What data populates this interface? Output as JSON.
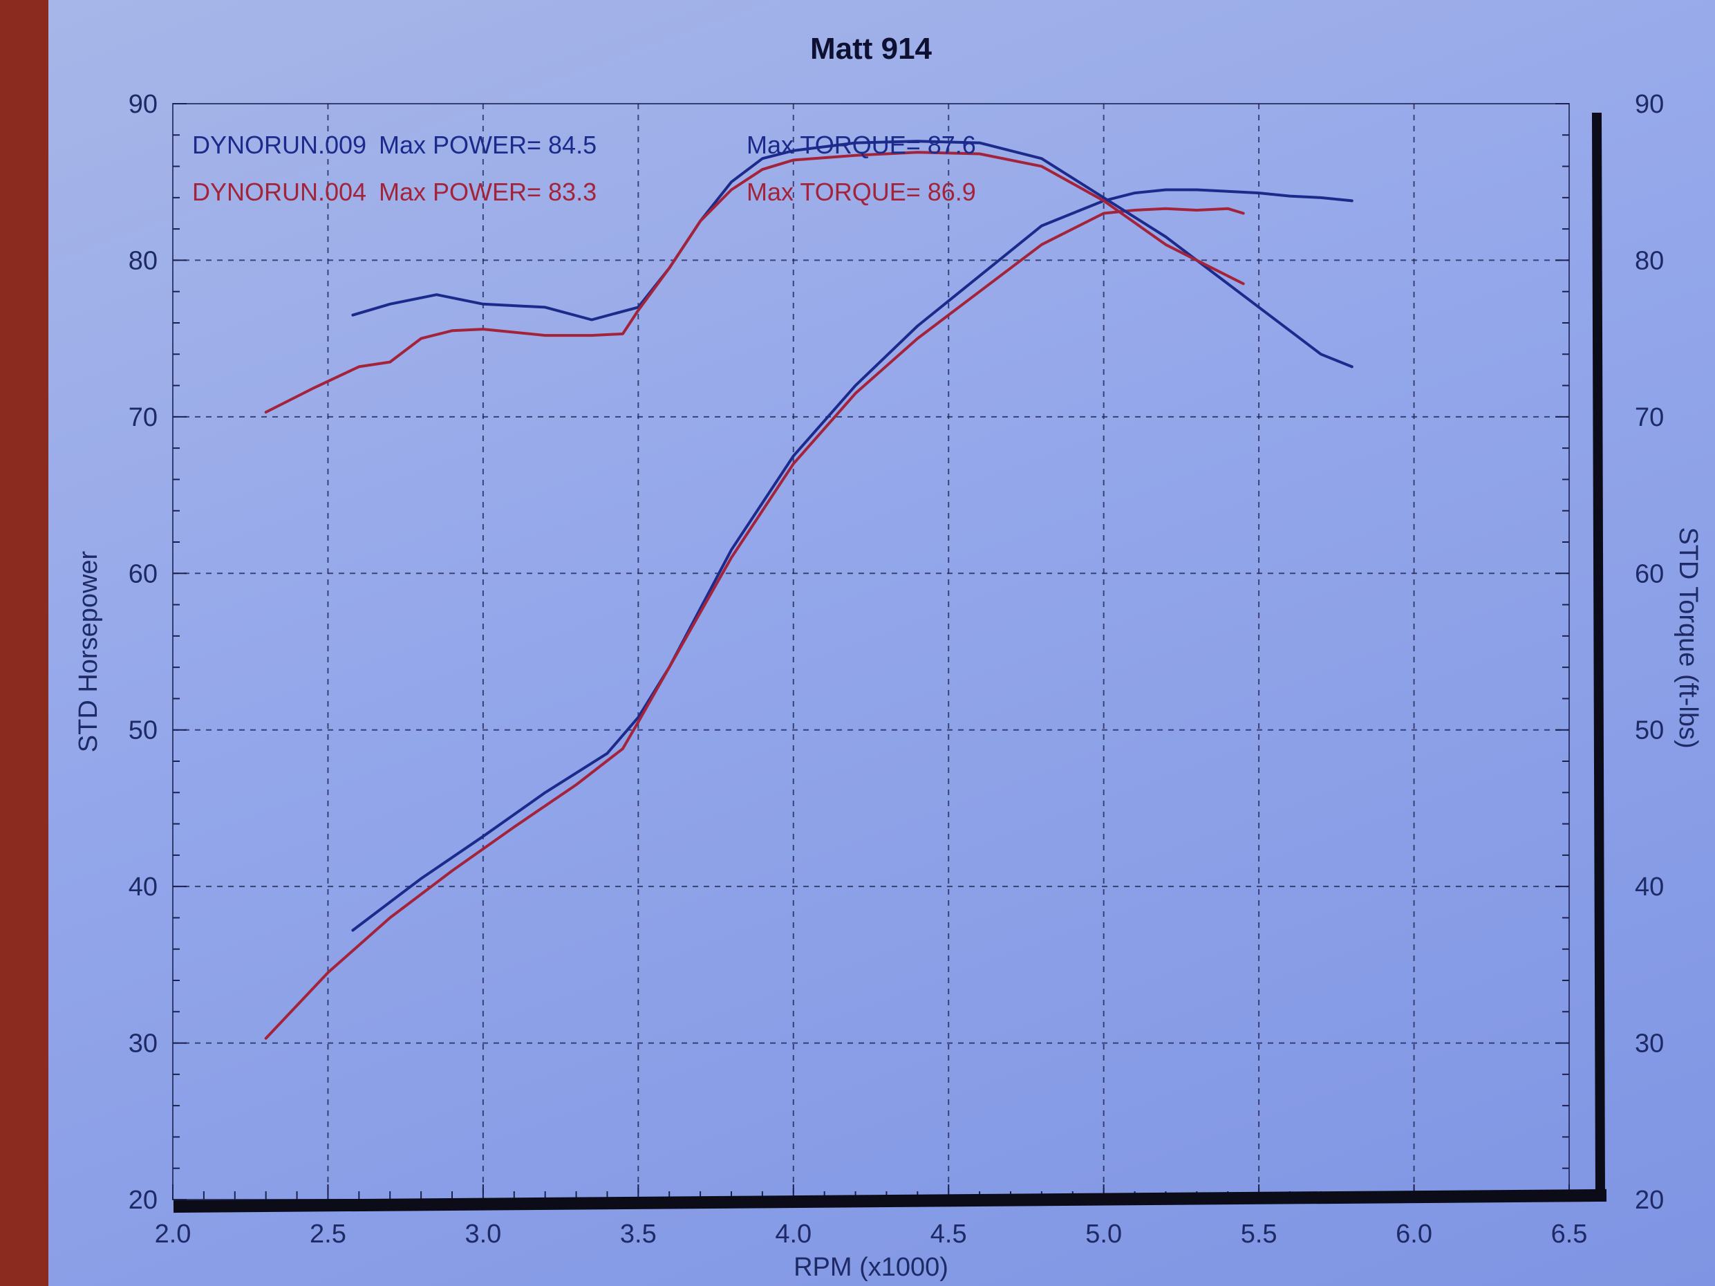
{
  "chart_data": {
    "type": "line",
    "title": "Matt 914",
    "xlabel": "RPM (x1000)",
    "ylabel_left": "STD Horsepower",
    "ylabel_right": "STD Torque (ft-lbs)",
    "xlim": [
      2.0,
      6.5
    ],
    "ylim_left": [
      20,
      90
    ],
    "ylim_right": [
      20,
      90
    ],
    "x_ticks": [
      "2.0",
      "2.5",
      "3.0",
      "3.5",
      "4.0",
      "4.5",
      "5.0",
      "5.5",
      "6.0",
      "6.5"
    ],
    "y_ticks_left": [
      "20",
      "30",
      "40",
      "50",
      "60",
      "70",
      "80",
      "90"
    ],
    "y_ticks_right": [
      "20",
      "30",
      "40",
      "50",
      "60",
      "70",
      "80",
      "90"
    ],
    "grid": true,
    "legend": [
      {
        "run": "DYNORUN.009",
        "power": "Max POWER= 84.5",
        "torque": "Max TORQUE= 87.6",
        "color": "#1c2a8c"
      },
      {
        "run": "DYNORUN.004",
        "power": "Max POWER= 83.3",
        "torque": "Max TORQUE= 86.9",
        "color": "#a3243a"
      }
    ],
    "series": [
      {
        "name": "DYNORUN.009",
        "measure": "power",
        "color": "#1c2a8c",
        "x": [
          2.58,
          2.8,
          3.0,
          3.2,
          3.4,
          3.5,
          3.6,
          3.8,
          4.0,
          4.2,
          4.4,
          4.6,
          4.8,
          5.0,
          5.1,
          5.2,
          5.3,
          5.4,
          5.5,
          5.6,
          5.7,
          5.8
        ],
        "y": [
          37.2,
          40.5,
          43.2,
          46.0,
          48.5,
          50.8,
          54.0,
          61.5,
          67.5,
          72.0,
          75.8,
          79.0,
          82.2,
          83.8,
          84.3,
          84.5,
          84.5,
          84.4,
          84.3,
          84.1,
          84.0,
          83.8
        ]
      },
      {
        "name": "DYNORUN.004",
        "measure": "power",
        "color": "#a3243a",
        "x": [
          2.3,
          2.5,
          2.7,
          2.9,
          3.1,
          3.3,
          3.45,
          3.5,
          3.6,
          3.8,
          4.0,
          4.2,
          4.4,
          4.6,
          4.8,
          5.0,
          5.1,
          5.2,
          5.3,
          5.4,
          5.45
        ],
        "y": [
          30.3,
          34.5,
          38.0,
          41.0,
          43.8,
          46.5,
          48.8,
          50.5,
          54.0,
          61.0,
          67.0,
          71.5,
          75.0,
          78.0,
          81.0,
          83.0,
          83.2,
          83.3,
          83.2,
          83.3,
          83.0
        ]
      },
      {
        "name": "DYNORUN.009",
        "measure": "torque",
        "color": "#1c2a8c",
        "x": [
          2.58,
          2.7,
          2.85,
          3.0,
          3.2,
          3.35,
          3.5,
          3.6,
          3.7,
          3.8,
          3.9,
          4.0,
          4.2,
          4.4,
          4.6,
          4.8,
          5.0,
          5.2,
          5.4,
          5.6,
          5.7,
          5.8
        ],
        "y": [
          76.5,
          77.2,
          77.8,
          77.2,
          77.0,
          76.2,
          77.0,
          79.5,
          82.5,
          85.0,
          86.5,
          87.0,
          87.5,
          87.6,
          87.5,
          86.5,
          84.0,
          81.5,
          78.5,
          75.5,
          74.0,
          73.2
        ]
      },
      {
        "name": "DYNORUN.004",
        "measure": "torque",
        "color": "#a3243a",
        "x": [
          2.3,
          2.45,
          2.6,
          2.7,
          2.8,
          2.9,
          3.0,
          3.2,
          3.35,
          3.45,
          3.5,
          3.6,
          3.7,
          3.8,
          3.9,
          4.0,
          4.2,
          4.4,
          4.6,
          4.8,
          5.0,
          5.2,
          5.35,
          5.45
        ],
        "y": [
          70.3,
          71.8,
          73.2,
          73.5,
          75.0,
          75.5,
          75.6,
          75.2,
          75.2,
          75.3,
          76.8,
          79.5,
          82.5,
          84.5,
          85.8,
          86.4,
          86.7,
          86.9,
          86.8,
          86.0,
          83.8,
          81.0,
          79.5,
          78.5
        ]
      }
    ]
  }
}
